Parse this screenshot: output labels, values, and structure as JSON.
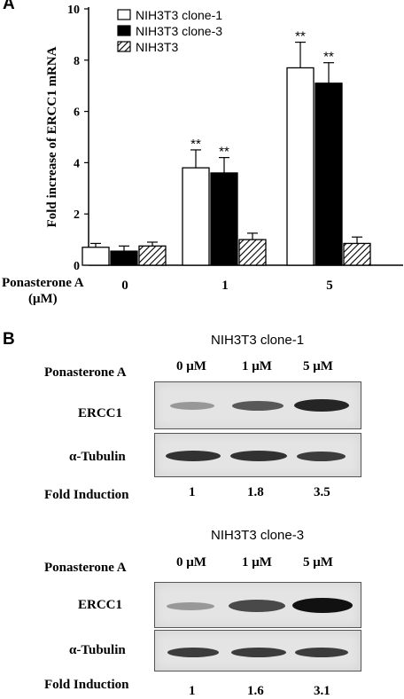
{
  "panel_a": {
    "letter": "A",
    "treatment_label_line1": "Ponasterone A",
    "treatment_label_line2": "(μM)"
  },
  "chart_data": {
    "type": "bar",
    "ylabel": "Fold increase of ERCC1 mRNA",
    "xlabel": "",
    "categories": [
      "0",
      "1",
      "5"
    ],
    "ylim": [
      0,
      10
    ],
    "yticks": [
      0,
      2,
      4,
      6,
      8,
      10
    ],
    "grid": false,
    "legend_position": "top-left",
    "series": [
      {
        "name": "NIH3T3 clone-1",
        "values": [
          0.7,
          3.8,
          7.7
        ],
        "errors": [
          0.15,
          0.7,
          1.0
        ],
        "fill": "white"
      },
      {
        "name": "NIH3T3 clone-3",
        "values": [
          0.55,
          3.6,
          7.1
        ],
        "errors": [
          0.2,
          0.6,
          0.8
        ],
        "fill": "black"
      },
      {
        "name": "NIH3T3",
        "values": [
          0.75,
          1.0,
          0.85
        ],
        "errors": [
          0.15,
          0.25,
          0.25
        ],
        "fill": "hatch"
      }
    ],
    "annotations": [
      {
        "category": "1",
        "series": "NIH3T3 clone-1",
        "text": "**"
      },
      {
        "category": "1",
        "series": "NIH3T3 clone-3",
        "text": "**"
      },
      {
        "category": "5",
        "series": "NIH3T3 clone-1",
        "text": "**"
      },
      {
        "category": "5",
        "series": "NIH3T3 clone-3",
        "text": "**"
      }
    ]
  },
  "panel_b": {
    "letter": "B",
    "blots": [
      {
        "title": "NIH3T3 clone-1",
        "treatment_label": "Ponasterone A",
        "conditions": [
          "0  μM",
          "1 μM",
          "5 μM"
        ],
        "rows": [
          {
            "label": "ERCC1",
            "intensities": [
              0.45,
              0.75,
              0.95
            ]
          },
          {
            "label": "α-Tubulin",
            "intensities": [
              0.9,
              0.9,
              0.85
            ]
          }
        ],
        "fold_label": "Fold Induction",
        "fold_values": [
          "1",
          "1.8",
          "3.5"
        ]
      },
      {
        "title": "NIH3T3 clone-3",
        "treatment_label": "Ponasterone A",
        "conditions": [
          "0  μM",
          "1 μM",
          "5 μM"
        ],
        "rows": [
          {
            "label": "ERCC1",
            "intensities": [
              0.45,
              0.8,
              1.0
            ]
          },
          {
            "label": "α-Tubulin",
            "intensities": [
              0.85,
              0.85,
              0.85
            ]
          }
        ],
        "fold_label": "Fold Induction",
        "fold_values": [
          "1",
          "1.6",
          "3.1"
        ]
      }
    ]
  }
}
